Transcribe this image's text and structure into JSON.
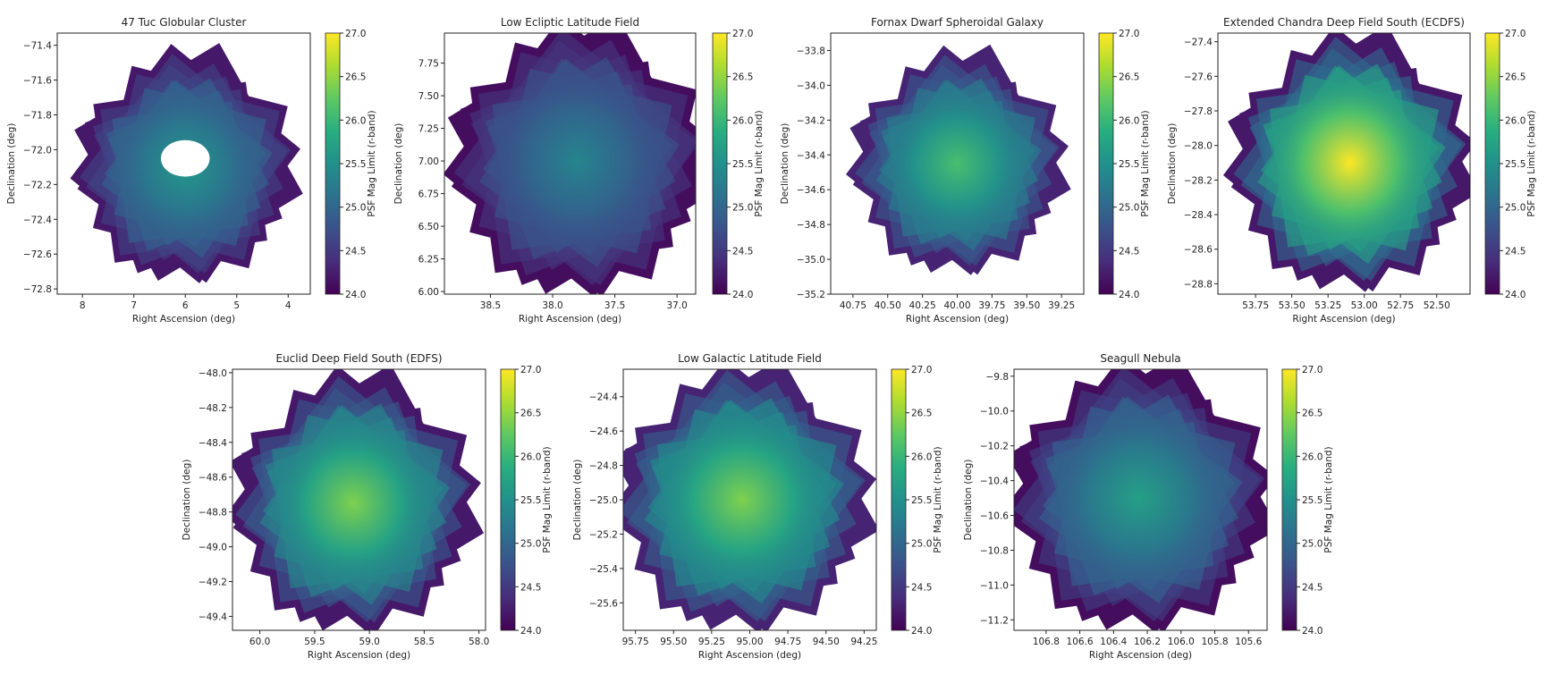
{
  "colormap": "viridis",
  "colorbar": {
    "label": "PSF Mag Limit (r-band)",
    "range": [
      24.0,
      27.0
    ],
    "ticks": [
      "24.0",
      "24.5",
      "25.0",
      "25.5",
      "26.0",
      "26.5",
      "27.0"
    ]
  },
  "chart_data": [
    {
      "type": "heatmap",
      "title": "47 Tuc Globular Cluster",
      "xlabel": "Right Ascension (deg)",
      "ylabel": "Declination (deg)",
      "xlim": [
        8.49,
        3.57
      ],
      "ylim": [
        -72.83,
        -71.33
      ],
      "xticks": [
        "8",
        "7",
        "6",
        "5",
        "4"
      ],
      "yticks": [
        "-72.8",
        "-72.6",
        "-72.4",
        "-72.2",
        "-72.0",
        "-71.8",
        "-71.6",
        "-71.4"
      ],
      "footprint": {
        "center": [
          6.0,
          -72.1
        ],
        "half_size_deg": 0.5,
        "peak_mag": 25.6,
        "edge_mag": 24.2,
        "masked_hole": {
          "center": [
            6.0,
            -72.05
          ],
          "radius_deg": 0.1
        }
      }
    },
    {
      "type": "heatmap",
      "title": "Low Ecliptic Latitude Field",
      "xlabel": "Right Ascension (deg)",
      "ylabel": "Declination (deg)",
      "xlim": [
        38.87,
        36.85
      ],
      "ylim": [
        5.98,
        7.98
      ],
      "xticks": [
        "38.5",
        "38.0",
        "37.5",
        "37.0"
      ],
      "yticks": [
        "6.00",
        "6.25",
        "6.50",
        "6.75",
        "7.00",
        "7.25",
        "7.50",
        "7.75"
      ],
      "footprint": {
        "center": [
          37.8,
          7.0
        ],
        "half_size_deg": 0.78,
        "peak_mag": 25.35,
        "edge_mag": 24.1
      }
    },
    {
      "type": "heatmap",
      "title": "Fornax Dwarf Spheroidal Galaxy",
      "xlabel": "Right Ascension (deg)",
      "ylabel": "Declination (deg)",
      "xlim": [
        40.91,
        39.09
      ],
      "ylim": [
        -35.2,
        -33.7
      ],
      "xticks": [
        "40.75",
        "40.50",
        "40.25",
        "40.00",
        "39.75",
        "39.50",
        "39.25"
      ],
      "yticks": [
        "-35.2",
        "-35.0",
        "-34.8",
        "-34.6",
        "-34.4",
        "-34.2",
        "-34.0",
        "-33.8"
      ],
      "footprint": {
        "center": [
          40.0,
          -34.45
        ],
        "half_size_deg": 0.48,
        "peak_mag": 26.1,
        "edge_mag": 24.3
      }
    },
    {
      "type": "heatmap",
      "title": "Extended Chandra Deep Field South (ECDFS)",
      "xlabel": "Right Ascension (deg)",
      "ylabel": "Declination (deg)",
      "xlim": [
        54.01,
        52.27
      ],
      "ylim": [
        -28.86,
        -27.35
      ],
      "xticks": [
        "53.75",
        "53.50",
        "53.25",
        "53.00",
        "52.75",
        "52.50"
      ],
      "yticks": [
        "-28.8",
        "-28.6",
        "-28.4",
        "-28.2",
        "-28.0",
        "-27.8",
        "-27.6",
        "-27.4"
      ],
      "footprint": {
        "center": [
          53.1,
          -28.1
        ],
        "half_size_deg": 0.56,
        "peak_mag": 27.0,
        "edge_mag": 24.2
      }
    },
    {
      "type": "heatmap",
      "title": "Euclid Deep Field South (EDFS)",
      "xlabel": "Right Ascension (deg)",
      "ylabel": "Declination (deg)",
      "xlim": [
        60.25,
        57.94
      ],
      "ylim": [
        -49.48,
        -47.98
      ],
      "xticks": [
        "60.0",
        "59.5",
        "59.0",
        "58.5",
        "58.0"
      ],
      "yticks": [
        "-49.4",
        "-49.2",
        "-49.0",
        "-48.8",
        "-48.6",
        "-48.4",
        "-48.2",
        "-48.0"
      ],
      "footprint": {
        "center": [
          59.15,
          -48.75
        ],
        "half_size_deg": 0.56,
        "peak_mag": 26.4,
        "edge_mag": 24.2
      }
    },
    {
      "type": "heatmap",
      "title": "Low Galactic Latitude Field",
      "xlabel": "Right Ascension (deg)",
      "ylabel": "Declination (deg)",
      "xlim": [
        95.83,
        94.17
      ],
      "ylim": [
        -25.76,
        -24.24
      ],
      "xticks": [
        "95.75",
        "95.50",
        "95.25",
        "95.00",
        "94.75",
        "94.50",
        "94.25"
      ],
      "yticks": [
        "-25.6",
        "-25.4",
        "-25.2",
        "-25.0",
        "-24.8",
        "-24.6",
        "-24.4"
      ],
      "footprint": {
        "center": [
          95.05,
          -25.0
        ],
        "half_size_deg": 0.58,
        "peak_mag": 26.4,
        "edge_mag": 24.3
      }
    },
    {
      "type": "heatmap",
      "title": "Seagull Nebula",
      "xlabel": "Right Ascension (deg)",
      "ylabel": "Declination (deg)",
      "xlim": [
        106.99,
        105.49
      ],
      "ylim": [
        -11.26,
        -9.76
      ],
      "xticks": [
        "106.8",
        "106.6",
        "106.4",
        "106.2",
        "106.0",
        "105.8",
        "105.6"
      ],
      "yticks": [
        "-11.2",
        "-11.0",
        "-10.8",
        "-10.6",
        "-10.4",
        "-10.2",
        "-10.0",
        "-9.8"
      ],
      "footprint": {
        "center": [
          106.25,
          -10.5
        ],
        "half_size_deg": 0.58,
        "peak_mag": 25.7,
        "edge_mag": 24.1
      }
    }
  ]
}
